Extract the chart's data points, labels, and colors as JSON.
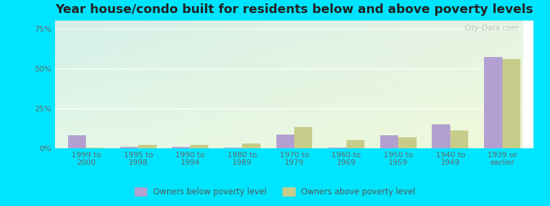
{
  "title": "Year house/condo built for residents below and above poverty levels",
  "categories": [
    "1999 to\n2000",
    "1995 to\n1998",
    "1990 to\n1994",
    "1980 to\n1989",
    "1970 to\n1979",
    "1960 to\n1969",
    "1950 to\n1959",
    "1940 to\n1949",
    "1939 or\nearlier"
  ],
  "below_poverty": [
    8.0,
    1.0,
    1.0,
    0.5,
    8.5,
    0.5,
    8.0,
    15.0,
    57.0
  ],
  "above_poverty": [
    0.3,
    2.0,
    2.0,
    3.0,
    13.5,
    5.0,
    7.0,
    11.0,
    56.0
  ],
  "below_color": "#b3a0d0",
  "above_color": "#c8cc8a",
  "ylim": [
    0,
    80
  ],
  "yticks": [
    0,
    25,
    50,
    75
  ],
  "ytick_labels": [
    "0%",
    "25%",
    "50%",
    "75%"
  ],
  "legend_below": "Owners below poverty level",
  "legend_above": "Owners above poverty level",
  "background_outer": "#00e5ff",
  "bg_top_left": "#d4f0e8",
  "bg_top_right": "#e8f0e0",
  "bg_bottom_left": "#e0f8e8",
  "bg_bottom_right": "#f0f8d8",
  "title_fontsize": 13,
  "tick_fontsize": 8,
  "bar_width": 0.35
}
